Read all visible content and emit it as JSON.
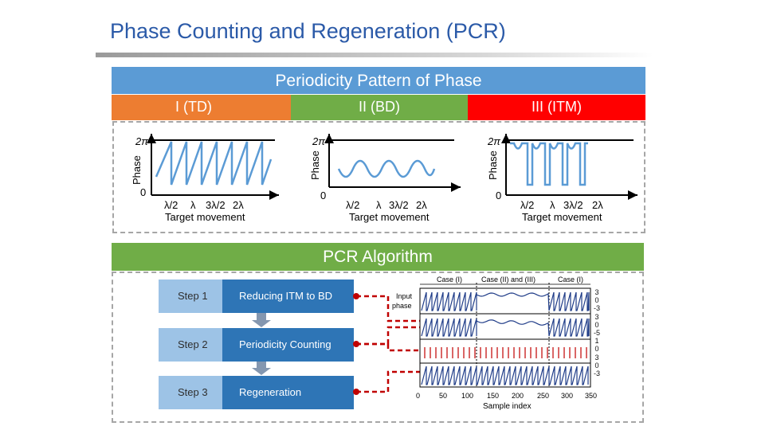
{
  "title": "Phase Counting and Regeneration (PCR)",
  "periodicity": {
    "header": "Periodicity Pattern of Phase",
    "cases": [
      {
        "id": "td",
        "label": "I (TD)",
        "color": "#ed7d31"
      },
      {
        "id": "bd",
        "label": "II (BD)",
        "color": "#70ad47"
      },
      {
        "id": "itm",
        "label": "III (ITM)",
        "color": "#ff0000"
      }
    ],
    "plot_ylabel": "Phase",
    "plot_xlabel": "Target movement",
    "y_top_tick": "2π",
    "y_zero_tick": "0",
    "x_ticks": [
      "λ/2",
      "λ",
      "3λ/2",
      "2λ"
    ]
  },
  "pcr": {
    "header": "PCR Algorithm",
    "steps": [
      {
        "label": "Step 1",
        "desc": "Reducing ITM to BD"
      },
      {
        "label": "Step 2",
        "desc": "Periodicity Counting"
      },
      {
        "label": "Step 3",
        "desc": "Regeneration"
      }
    ],
    "chart": {
      "ylabel_line1": "Input",
      "ylabel_line2": "phase",
      "xlabel": "Sample index",
      "x_ticks": [
        "0",
        "50",
        "100",
        "150",
        "200",
        "250",
        "300",
        "350"
      ],
      "case_labels": [
        "Case (I)",
        "Case (II) and (III)",
        "Case (I)"
      ],
      "side_labels": [
        "3",
        "0",
        "-3",
        "3",
        "0",
        "-5",
        "1",
        "0",
        "3",
        "0",
        "-3"
      ],
      "trace_color": "#1f3c88",
      "pulse_color": "#c00000"
    }
  }
}
